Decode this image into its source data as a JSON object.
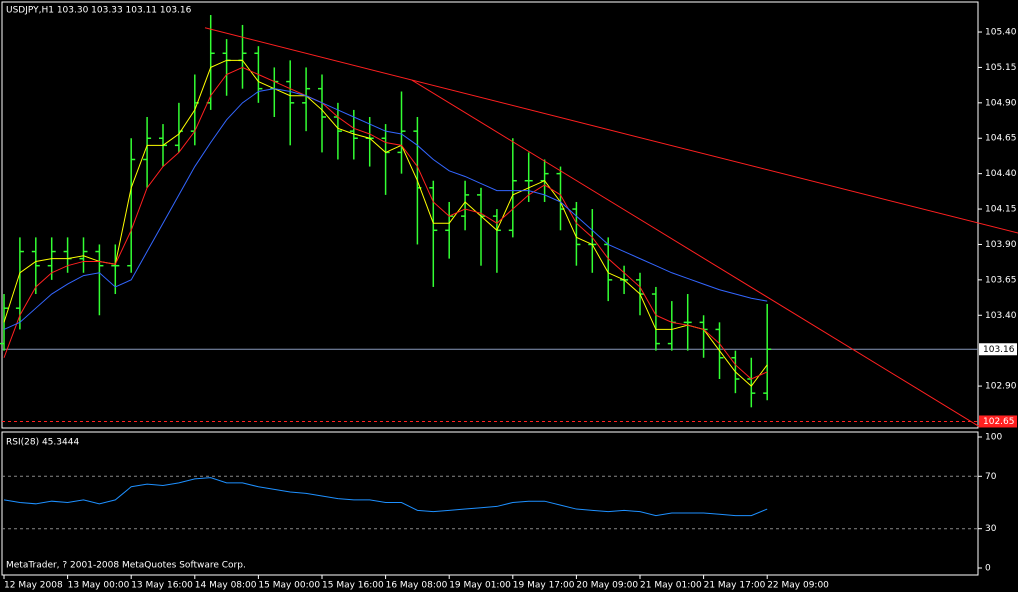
{
  "chart_data": [
    {
      "type": "candlestick",
      "title": "USDJPY,H1  103.30 103.33 103.11 103.16",
      "categories": [
        "12 May 2008",
        null,
        null,
        null,
        "13 May 00:00",
        null,
        null,
        null,
        "13 May 16:00",
        null,
        null,
        null,
        "14 May 08:00",
        null,
        null,
        null,
        "15 May 00:00",
        null,
        null,
        null,
        "15 May 16:00",
        null,
        null,
        null,
        "16 May 08:00",
        null,
        null,
        null,
        "19 May 01:00",
        null,
        null,
        null,
        "19 May 17:00",
        null,
        null,
        null,
        "20 May 09:00",
        null,
        null,
        null,
        "21 May 01:00",
        null,
        null,
        null,
        "21 May 17:00",
        null,
        null,
        null,
        "22 May 09:00"
      ],
      "open": [
        103.2,
        103.45,
        103.85,
        103.75,
        103.85,
        103.8,
        103.85,
        103.75,
        103.75,
        104.5,
        104.65,
        104.6,
        104.7,
        104.9,
        105.25,
        105.2,
        105.25,
        105.0,
        105.05,
        104.9,
        105.0,
        104.8,
        104.7,
        104.65,
        104.65,
        104.55,
        104.7,
        104.3,
        104.0,
        104.1,
        104.25,
        104.1,
        104.0,
        104.35,
        104.35,
        104.4,
        104.15,
        103.9,
        103.9,
        103.65,
        103.65,
        103.55,
        103.2,
        103.35,
        103.35,
        103.3,
        103.1,
        102.95,
        102.85
      ],
      "high": [
        103.55,
        103.95,
        103.95,
        103.95,
        103.95,
        103.95,
        103.9,
        103.9,
        104.65,
        104.8,
        104.75,
        104.9,
        105.1,
        105.52,
        105.35,
        105.45,
        105.3,
        105.15,
        105.2,
        105.15,
        105.1,
        104.9,
        104.85,
        104.8,
        104.75,
        104.98,
        104.8,
        104.35,
        104.2,
        104.35,
        104.3,
        104.15,
        104.65,
        104.55,
        104.5,
        104.45,
        104.2,
        104.15,
        103.95,
        103.75,
        103.7,
        103.6,
        103.5,
        103.55,
        103.4,
        103.35,
        103.15,
        103.1,
        103.48
      ],
      "low": [
        103.15,
        103.3,
        103.55,
        103.65,
        103.7,
        103.7,
        103.4,
        103.55,
        103.7,
        104.3,
        104.45,
        104.55,
        104.6,
        104.85,
        104.95,
        105.0,
        104.9,
        104.8,
        104.6,
        104.7,
        104.55,
        104.5,
        104.5,
        104.45,
        104.25,
        104.4,
        103.9,
        103.6,
        103.8,
        104.0,
        103.75,
        103.7,
        103.95,
        104.2,
        104.2,
        104.0,
        103.75,
        103.7,
        103.5,
        103.55,
        103.4,
        103.15,
        103.15,
        103.15,
        103.1,
        102.95,
        102.85,
        102.75,
        102.8
      ],
      "close": [
        103.45,
        103.85,
        103.75,
        103.85,
        103.8,
        103.85,
        103.75,
        103.75,
        104.5,
        104.65,
        104.6,
        104.7,
        104.9,
        105.25,
        105.2,
        105.25,
        105.0,
        105.05,
        104.9,
        105.0,
        104.8,
        104.7,
        104.65,
        104.65,
        104.55,
        104.7,
        104.3,
        104.0,
        104.1,
        104.25,
        104.1,
        104.0,
        104.35,
        104.35,
        104.4,
        104.15,
        103.9,
        103.9,
        103.65,
        103.65,
        103.55,
        103.2,
        103.35,
        103.35,
        103.3,
        103.1,
        102.95,
        102.85,
        103.16
      ],
      "color": "#33ff33",
      "overlays": [
        {
          "color": "#ffff00",
          "values": [
            103.35,
            103.7,
            103.78,
            103.8,
            103.8,
            103.82,
            103.78,
            103.76,
            104.3,
            104.6,
            104.6,
            104.68,
            104.85,
            105.15,
            105.2,
            105.2,
            105.05,
            105.0,
            104.95,
            104.95,
            104.85,
            104.72,
            104.68,
            104.65,
            104.55,
            104.6,
            104.35,
            104.05,
            104.05,
            104.2,
            104.1,
            104.0,
            104.25,
            104.3,
            104.35,
            104.2,
            103.95,
            103.9,
            103.7,
            103.65,
            103.55,
            103.3,
            103.3,
            103.33,
            103.3,
            103.15,
            103.0,
            102.9,
            103.05
          ]
        },
        {
          "color": "#ff2020",
          "values": [
            103.1,
            103.4,
            103.6,
            103.7,
            103.75,
            103.78,
            103.78,
            103.76,
            104.0,
            104.3,
            104.45,
            104.55,
            104.7,
            104.95,
            105.1,
            105.15,
            105.1,
            105.05,
            105.0,
            104.95,
            104.9,
            104.8,
            104.72,
            104.68,
            104.62,
            104.6,
            104.45,
            104.2,
            104.1,
            104.15,
            104.12,
            104.05,
            104.15,
            104.25,
            104.32,
            104.25,
            104.05,
            103.95,
            103.8,
            103.7,
            103.6,
            103.4,
            103.35,
            103.33,
            103.3,
            103.2,
            103.05,
            102.95,
            103.0
          ]
        },
        {
          "color": "#3366ff",
          "values": [
            103.3,
            103.35,
            103.45,
            103.55,
            103.62,
            103.68,
            103.7,
            103.6,
            103.65,
            103.85,
            104.05,
            104.25,
            104.45,
            104.62,
            104.78,
            104.9,
            104.98,
            105.0,
            104.98,
            104.95,
            104.9,
            104.85,
            104.8,
            104.75,
            104.7,
            104.68,
            104.6,
            104.5,
            104.42,
            104.38,
            104.33,
            104.28,
            104.28,
            104.28,
            104.25,
            104.2,
            104.1,
            104.0,
            103.9,
            103.85,
            103.8,
            103.75,
            103.7,
            103.66,
            103.62,
            103.58,
            103.55,
            103.52,
            103.5
          ]
        }
      ],
      "trendlines": [
        {
          "color": "#ff2020",
          "x": [
            12.64,
            63.8
          ],
          "y": [
            105.43,
            103.98
          ]
        },
        {
          "color": "#ff2020",
          "x": [
            25.66,
            61.4
          ],
          "y": [
            105.06,
            102.61
          ]
        }
      ],
      "last_price": 103.16,
      "alert_level": 102.65,
      "ylim": [
        102.604,
        105.612
      ],
      "yticks": [
        {
          "value": 105.4,
          "label": "105.40"
        },
        105.15,
        {
          "value": 104.9,
          "label": "104.90"
        },
        104.65,
        {
          "value": 104.4,
          "label": "104.40"
        },
        104.15,
        {
          "value": 103.9,
          "label": "103.90"
        },
        103.65,
        {
          "value": 103.4,
          "label": "103.40"
        },
        {
          "value": 102.9,
          "label": "102.90"
        }
      ]
    },
    {
      "type": "line",
      "title": "RSI(28) 45.3444",
      "color": "#1e90ff",
      "values": [
        52,
        50,
        49,
        51,
        50,
        52,
        49,
        52,
        62,
        64,
        63,
        65,
        68,
        69,
        65,
        65,
        62,
        60,
        58,
        57,
        55,
        53,
        52,
        52,
        50,
        50,
        44,
        43,
        44,
        45,
        46,
        47,
        50,
        51,
        51,
        48,
        45,
        44,
        43,
        44,
        43,
        40,
        42,
        42,
        42,
        41,
        40,
        40,
        45
      ],
      "levels": [
        70,
        30
      ],
      "ylim": [
        0,
        100
      ],
      "yticks": [
        100,
        70,
        30,
        0
      ]
    }
  ],
  "footer": "MetaTrader, ? 2001-2008 MetaQuotes Software Corp."
}
